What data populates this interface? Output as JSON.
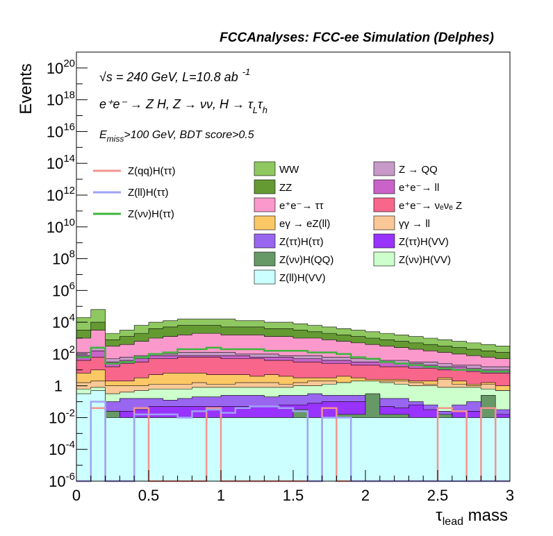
{
  "chart_data": {
    "type": "area",
    "title": "FCCAnalyses: FCC-ee Simulation (Delphes)",
    "xlabel": "τ_lead mass",
    "xlabel_main": "τ",
    "xlabel_sub": "lead",
    "xlabel_rest": " mass",
    "ylabel": "Events",
    "xlim": [
      0,
      3
    ],
    "ylim_exp": [
      -6,
      21
    ],
    "y_scale": "log",
    "x_ticks": [
      "0",
      "0.5",
      "1",
      "1.5",
      "2",
      "2.5",
      "3"
    ],
    "y_ticks": [
      {
        "exp": 20,
        "base": "10",
        "sup": "20"
      },
      {
        "exp": 18,
        "base": "10",
        "sup": "18"
      },
      {
        "exp": 16,
        "base": "10",
        "sup": "16"
      },
      {
        "exp": 14,
        "base": "10",
        "sup": "14"
      },
      {
        "exp": 12,
        "base": "10",
        "sup": "12"
      },
      {
        "exp": 10,
        "base": "10",
        "sup": "10"
      },
      {
        "exp": 8,
        "base": "10",
        "sup": "8"
      },
      {
        "exp": 6,
        "base": "10",
        "sup": "6"
      },
      {
        "exp": 4,
        "base": "10",
        "sup": "4"
      },
      {
        "exp": 2,
        "base": "10",
        "sup": "2"
      },
      {
        "exp": 0,
        "base": "1",
        "sup": ""
      },
      {
        "exp": -2,
        "base": "10",
        "sup": "-2"
      },
      {
        "exp": -4,
        "base": "10",
        "sup": "-4"
      },
      {
        "exp": -6,
        "base": "10",
        "sup": "-6"
      }
    ],
    "annotations": {
      "line1_sqrt": "√s",
      "line1_rest": " = 240 GeV, L=10.8 ab",
      "line1_sup": "-1",
      "line2": "e⁺e⁻ → Z H, Z → νν, H → τ",
      "line2_sub1": "L",
      "line2_mid": "τ",
      "line2_sub2": "h",
      "line3_E": "E",
      "line3_sub": "miss",
      "line3_rest": ">100 GeV, BDT score>0.5"
    },
    "legend": {
      "lines": [
        {
          "label": "Z(qq)H(ττ)",
          "color": "#f4938f"
        },
        {
          "label": "Z(ll)H(ττ)",
          "color": "#9fa3f5"
        },
        {
          "label": "Z(νν)H(ττ)",
          "color": "#3cb43c"
        }
      ],
      "fills": [
        {
          "label": "WW",
          "color": "#8fc860"
        },
        {
          "label": "Z → QQ",
          "color": "#c89ac8"
        },
        {
          "label": "ZZ",
          "color": "#659a33"
        },
        {
          "label": "e⁺e⁻→ ll",
          "color": "#c963c9"
        },
        {
          "label": "e⁺e⁻→ ττ",
          "color": "#fc99cc"
        },
        {
          "label": "e⁺e⁻→ νₑνₑ Z",
          "color": "#f8668b"
        },
        {
          "label": "eγ → eZ(ll)",
          "color": "#fcc865"
        },
        {
          "label": "γγ → ll",
          "color": "#fac896"
        },
        {
          "label": "Z(ττ)H(ττ)",
          "color": "#9966f0"
        },
        {
          "label": "Z(ττ)H(VV)",
          "color": "#9933ff"
        },
        {
          "label": "Z(νν)H(QQ)",
          "color": "#669966"
        },
        {
          "label": "Z(νν)H(VV)",
          "color": "#ccffcc"
        },
        {
          "label": "Z(ll)H(VV)",
          "color": "#ccffff"
        }
      ]
    },
    "bin_edges": [
      0,
      0.1,
      0.2,
      0.3,
      0.4,
      0.5,
      0.6,
      0.7,
      0.8,
      0.9,
      1.0,
      1.1,
      1.2,
      1.3,
      1.4,
      1.5,
      1.6,
      1.7,
      1.8,
      1.9,
      2.0,
      2.1,
      2.2,
      2.3,
      2.4,
      2.5,
      2.6,
      2.7,
      2.8,
      2.9,
      3.0
    ],
    "stack_order_bottom_to_top": [
      "Z(ll)H(VV)",
      "Z(νν)H(QQ)",
      "Z(ττ)H(VV)",
      "Z(ττ)H(ττ)",
      "Z(νν)H(VV)",
      "γγ → ll",
      "eγ → eZ(ll)",
      "e⁺e⁻→ νₑνₑ Z",
      "e⁺e⁻→ ll",
      "Z → QQ",
      "e⁺e⁻→ ττ",
      "ZZ",
      "WW"
    ],
    "stack_tops_log10": {
      "Z(ll)H(VV)": [
        -0.5,
        -0.3,
        -2.0,
        -2.0,
        -2.0,
        -2.0,
        -2.0,
        -2.0,
        -2.0,
        -2.0,
        -2.0,
        -2.0,
        -2.0,
        -2.0,
        -2.0,
        -2.0,
        -2.0,
        -2.0,
        -2.0,
        -2.0,
        -2.0,
        -2.0,
        -2.0,
        -2.0,
        -2.0,
        -2.0,
        -2.0,
        -2.0,
        -2.0,
        -2.0
      ],
      "Z(νν)H(QQ)": [
        -0.6,
        -1.6,
        -1.6,
        -2.0,
        -2.0,
        -2.0,
        -2.0,
        -2.0,
        -2.0,
        -2.0,
        -2.0,
        -2.0,
        -2.0,
        -2.0,
        -2.0,
        -1.5,
        -2.0,
        -2.0,
        -1.8,
        -1.8,
        -0.5,
        -1.8,
        -1.8,
        -2.0,
        -2.0,
        -1.8,
        -2.0,
        -2.0,
        -0.6,
        -2.0
      ],
      "Z(ττ)H(VV)": [
        -0.8,
        -1.2,
        -1.6,
        -1.6,
        -1.5,
        -1.3,
        -1.3,
        -1.3,
        -1.3,
        -1.3,
        -1.3,
        -1.3,
        -1.3,
        -1.3,
        -1.2,
        -1.2,
        -1.1,
        -1.0,
        -1.0,
        -1.0,
        -0.6,
        -1.3,
        -1.4,
        -1.2,
        -1.5,
        -2.0,
        -1.6,
        -1.6,
        -1.6,
        -1.8
      ],
      "Z(ττ)H(ττ)": [
        -0.6,
        -0.4,
        -1.0,
        -0.8,
        -0.8,
        -0.8,
        -0.9,
        -0.8,
        -0.7,
        -0.7,
        -0.6,
        -0.6,
        -0.6,
        -0.7,
        -0.6,
        -0.6,
        -0.5,
        -0.6,
        -0.6,
        -0.6,
        -0.6,
        -0.8,
        -0.8,
        -1.0,
        -1.2,
        -1.6,
        -1.2,
        -1.0,
        -1.2,
        -1.5
      ],
      "Z(νν)H(VV)": [
        -0.2,
        -0.1,
        -0.5,
        -0.4,
        -0.3,
        -0.2,
        -0.2,
        -0.2,
        -0.1,
        -0.1,
        -0.1,
        -0.1,
        -0.1,
        -0.1,
        -0.1,
        0.0,
        0.0,
        0.1,
        0.2,
        0.3,
        0.3,
        0.2,
        0.1,
        0.0,
        0.0,
        -0.1,
        -0.1,
        -0.1,
        -0.2,
        -0.3
      ],
      "γγ → ll": [
        0.2,
        0.3,
        0.0,
        0.0,
        0.0,
        0.1,
        0.1,
        0.1,
        0.2,
        0.1,
        0.1,
        0.2,
        0.2,
        0.2,
        0.1,
        0.2,
        0.3,
        0.3,
        0.2,
        0.3,
        0.3,
        0.3,
        0.3,
        0.2,
        0.1,
        0.4,
        0.1,
        0.0,
        0.1,
        -0.3
      ],
      "eγ → eZ(ll)": [
        0.8,
        1.0,
        0.3,
        0.3,
        0.5,
        0.7,
        0.8,
        0.8,
        0.8,
        0.7,
        0.7,
        0.7,
        0.6,
        0.7,
        0.6,
        0.5,
        0.5,
        0.5,
        0.6,
        0.5,
        0.4,
        0.4,
        0.4,
        0.3,
        0.3,
        0.5,
        0.3,
        0.1,
        0.2,
        0.0
      ],
      "e⁺e⁻→ νₑνₑ Z": [
        1.6,
        1.8,
        1.2,
        1.4,
        1.5,
        1.7,
        1.7,
        1.8,
        1.8,
        1.8,
        1.7,
        1.7,
        1.7,
        1.6,
        1.6,
        1.5,
        1.5,
        1.4,
        1.4,
        1.3,
        1.3,
        1.2,
        1.2,
        1.1,
        1.1,
        1.0,
        1.0,
        0.9,
        0.8,
        0.8
      ],
      "e⁺e⁻→ ll": [
        1.9,
        2.2,
        1.5,
        1.6,
        1.7,
        1.9,
        1.9,
        1.9,
        1.9,
        1.9,
        1.9,
        1.9,
        1.8,
        1.8,
        1.8,
        1.7,
        1.7,
        1.6,
        1.6,
        1.5,
        1.5,
        1.5,
        1.4,
        1.4,
        1.3,
        1.2,
        1.2,
        1.1,
        1.0,
        1.0
      ],
      "Z → QQ": [
        2.1,
        2.4,
        1.7,
        1.8,
        1.9,
        2.0,
        2.0,
        2.1,
        2.1,
        2.1,
        2.1,
        2.0,
        2.0,
        2.0,
        1.9,
        1.9,
        1.9,
        1.8,
        1.8,
        1.7,
        1.7,
        1.6,
        1.6,
        1.5,
        1.5,
        1.4,
        1.3,
        1.3,
        1.2,
        1.2
      ],
      "e⁺e⁻→ ττ": [
        3.0,
        3.5,
        2.5,
        2.6,
        2.8,
        3.0,
        3.1,
        3.2,
        3.3,
        3.3,
        3.2,
        3.2,
        3.2,
        3.1,
        3.1,
        3.0,
        3.0,
        2.9,
        2.8,
        2.7,
        2.6,
        2.5,
        2.4,
        2.3,
        2.2,
        2.1,
        2.0,
        1.9,
        1.8,
        1.7
      ],
      "ZZ": [
        3.5,
        4.0,
        2.9,
        3.1,
        3.3,
        3.6,
        3.7,
        3.8,
        3.8,
        3.8,
        3.7,
        3.7,
        3.7,
        3.6,
        3.6,
        3.5,
        3.4,
        3.3,
        3.2,
        3.1,
        3.0,
        2.9,
        2.8,
        2.7,
        2.6,
        2.5,
        2.4,
        2.3,
        2.2,
        2.1
      ],
      "WW": [
        4.3,
        4.8,
        3.3,
        3.5,
        3.8,
        4.0,
        4.1,
        4.2,
        4.2,
        4.2,
        4.2,
        4.1,
        4.1,
        4.0,
        4.0,
        3.9,
        3.8,
        3.7,
        3.6,
        3.5,
        3.4,
        3.3,
        3.2,
        3.1,
        3.0,
        2.9,
        2.8,
        2.7,
        2.6,
        2.5
      ]
    },
    "line_series_log10": {
      "Z(qq)H(ττ)": [
        -6,
        -1.4,
        -6,
        -6,
        -1.4,
        -6,
        -6,
        -6,
        -6,
        -1.4,
        -6,
        -6,
        -6,
        -6,
        -6,
        -6,
        -6,
        -1.4,
        -6,
        -6,
        -6,
        -6,
        -6,
        -6,
        -6,
        -1.4,
        -1.6,
        -6,
        -1.4,
        -6
      ],
      "Z(ll)H(ττ)": [
        -6,
        -1.0,
        -6,
        -6,
        -1.8,
        -1.8,
        -1.8,
        -2.0,
        -1.6,
        -1.5,
        -1.7,
        -1.4,
        -1.3,
        -1.3,
        -1.4,
        -1.6,
        -6,
        -2.0,
        -2.0,
        -6,
        -6,
        -6,
        -6,
        -6,
        -6,
        -6,
        -6,
        -6,
        -6,
        -6
      ],
      "Z(νν)H(ττ)": [
        1.8,
        2.4,
        1.4,
        1.5,
        1.8,
        2.0,
        2.1,
        2.3,
        2.3,
        2.4,
        2.3,
        2.3,
        2.3,
        2.2,
        2.2,
        2.2,
        2.1,
        2.1,
        2.0,
        1.8,
        1.7,
        1.5,
        1.4,
        1.3,
        1.2,
        1.1,
        1.0,
        1.0,
        0.9,
        0.9
      ]
    }
  }
}
